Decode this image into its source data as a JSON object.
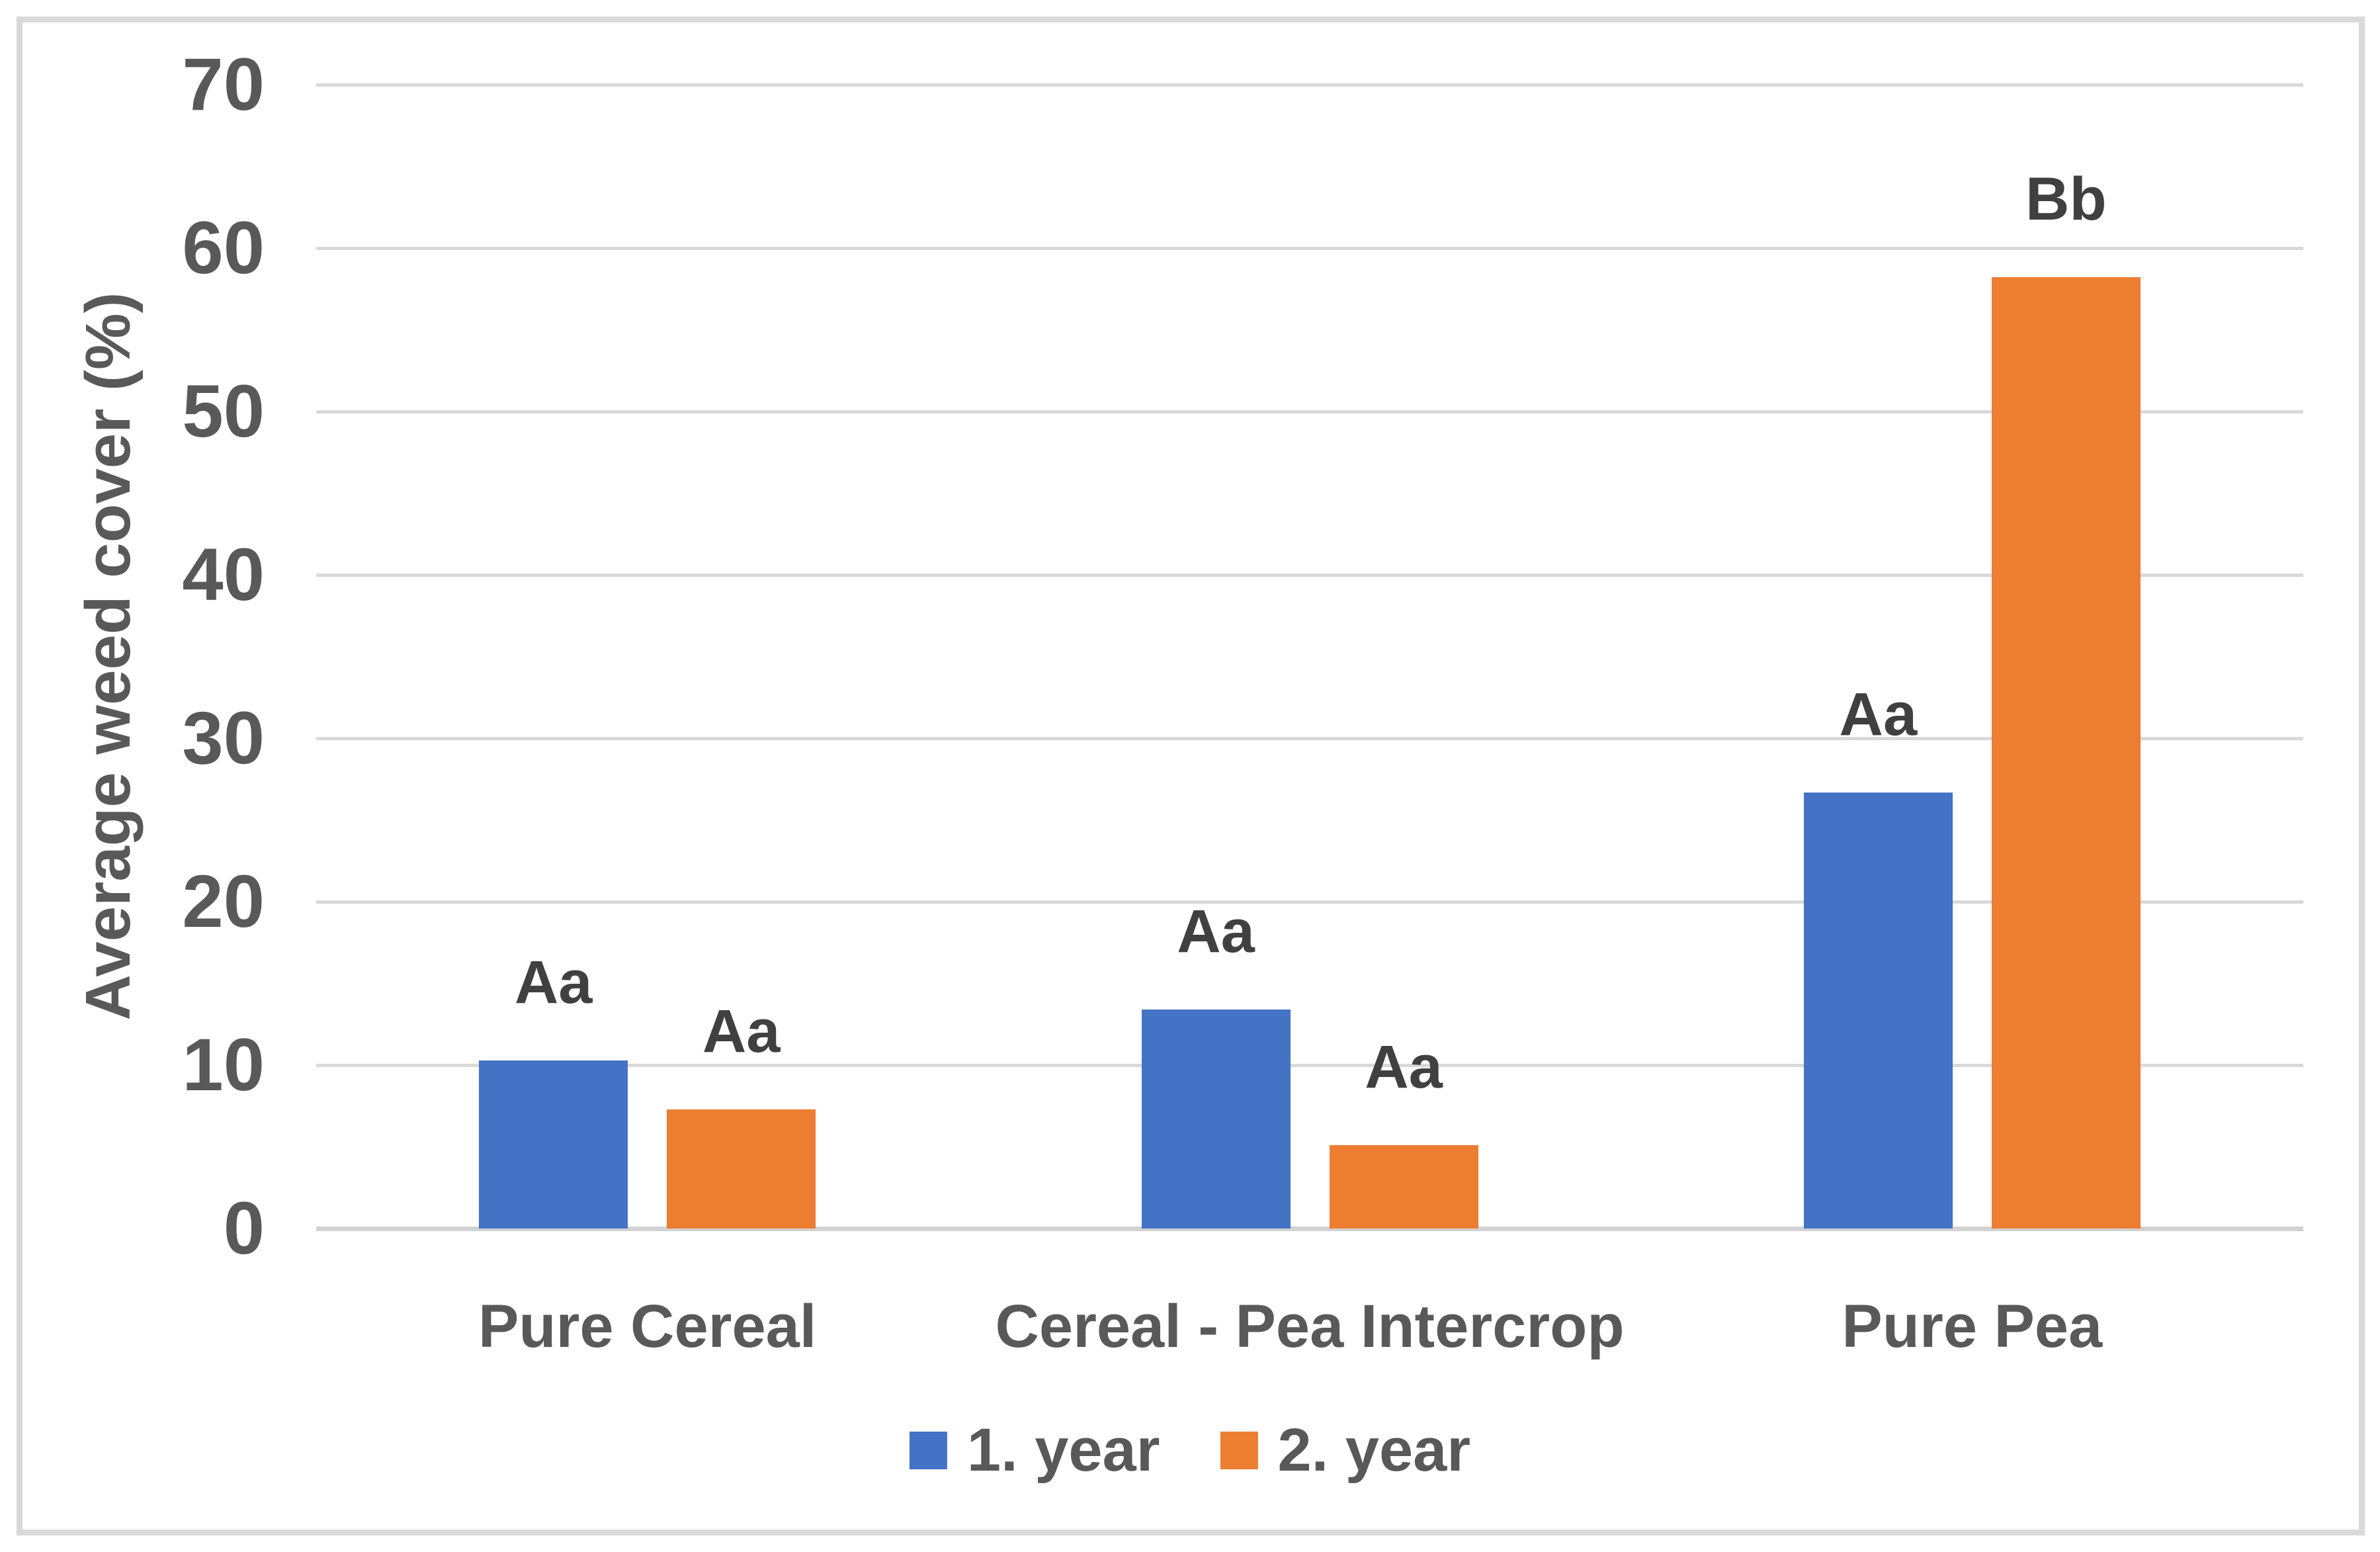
{
  "chart_data": {
    "type": "bar",
    "categories": [
      "Pure Cereal",
      "Cereal - Pea Intercrop",
      "Pure Pea"
    ],
    "series": [
      {
        "name": "1. year",
        "color": "#4472C4",
        "values": [
          10.3,
          13.4,
          26.7
        ],
        "sig_labels": [
          "Aa",
          "Aa",
          "Aa"
        ]
      },
      {
        "name": "2. year",
        "color": "#ED7D31",
        "values": [
          7.3,
          5.1,
          58.2
        ],
        "sig_labels": [
          "Aa",
          "Aa",
          "Bb"
        ]
      }
    ],
    "title": "",
    "xlabel": "",
    "ylabel": "Average weed cover (%)",
    "ylim": [
      0,
      70
    ],
    "ytick_step": 10,
    "yticks": [
      0,
      10,
      20,
      30,
      40,
      50,
      60,
      70
    ],
    "grid": true,
    "legend_position": "bottom"
  },
  "colors": {
    "grid": "#D9D9D9",
    "axis_line": "#D2D2D2",
    "frame_border": "#D9D9D9",
    "tick_text": "#595959",
    "category_text": "#595959",
    "data_label_text": "#404040",
    "background": "#FFFFFF"
  }
}
